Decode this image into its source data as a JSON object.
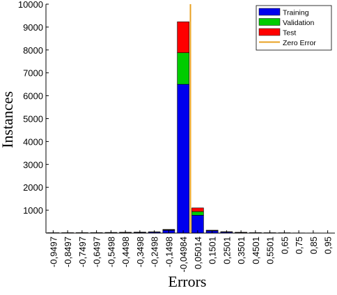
{
  "chart_data": {
    "type": "bar",
    "stacked": true,
    "xlabel": "Errors",
    "ylabel": "Instances",
    "ylim": [
      0,
      10000
    ],
    "y_ticks": [
      1000,
      2000,
      3000,
      4000,
      5000,
      6000,
      7000,
      8000,
      9000,
      10000
    ],
    "categories": [
      "-0,9497",
      "-0,8497",
      "-0,7497",
      "-0,6497",
      "-0,5498",
      "-0,4498",
      "-0,3498",
      "-0,2498",
      "-0,1498",
      "-0,04984",
      "0,05014",
      "0,1501",
      "0,2501",
      "0,3501",
      "0,4501",
      "0,5501",
      "0,65",
      "0,75",
      "0,85",
      "0,95"
    ],
    "series": [
      {
        "name": "Training",
        "color": "#0000ee",
        "values": [
          10,
          12,
          14,
          16,
          20,
          25,
          30,
          40,
          120,
          6500,
          780,
          95,
          45,
          25,
          15,
          10,
          8,
          6,
          5,
          4
        ]
      },
      {
        "name": "Validation",
        "color": "#00cc00",
        "values": [
          2,
          2,
          3,
          3,
          4,
          5,
          6,
          8,
          20,
          1380,
          160,
          15,
          8,
          5,
          3,
          2,
          2,
          1,
          1,
          1
        ]
      },
      {
        "name": "Test",
        "color": "#ff0000",
        "values": [
          2,
          2,
          3,
          3,
          4,
          5,
          6,
          8,
          20,
          1350,
          160,
          15,
          8,
          5,
          3,
          2,
          2,
          1,
          1,
          1
        ]
      }
    ],
    "zero_error_line": {
      "name": "Zero Error",
      "color": "#e8a020",
      "x_value": 0
    },
    "legend_position": "top-right",
    "grid": false
  }
}
